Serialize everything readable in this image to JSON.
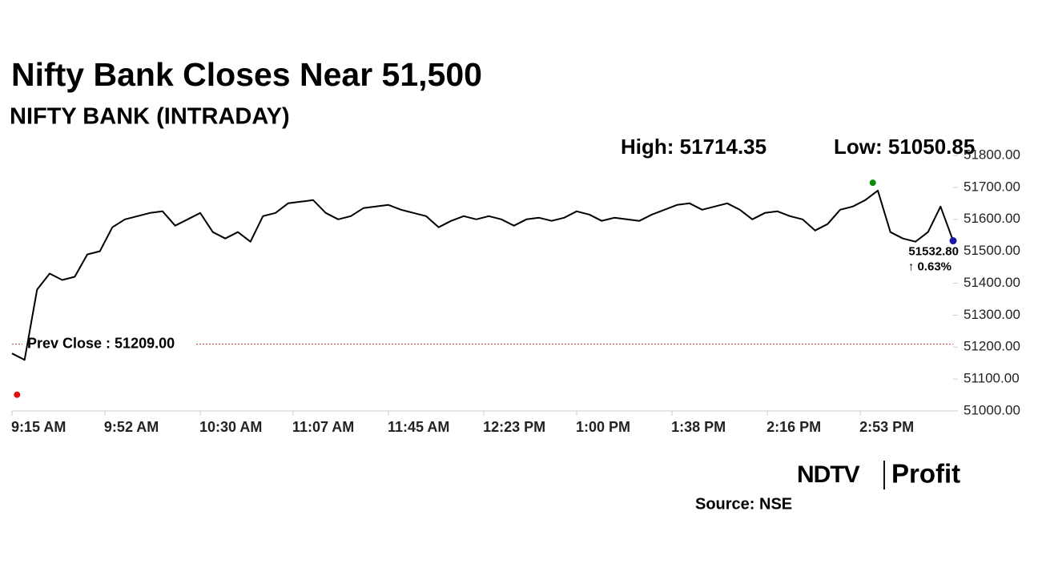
{
  "chart_data": {
    "type": "line",
    "title": "Nifty Bank Closes Near 51,500",
    "subtitle": "NIFTY BANK (INTRADAY)",
    "high": {
      "value": 51714.35,
      "label": "High: 51714.35",
      "x": "2:58 PM",
      "color": "#0a8a0a"
    },
    "low": {
      "value": 51050.85,
      "label": "Low: 51050.85",
      "x": "9:17 AM",
      "color": "#e01010"
    },
    "prev_close": {
      "value": 51209,
      "label": "Prev Close : 51209.00",
      "color": "#c0392b"
    },
    "close": {
      "value": 51532.8,
      "label": "51532.80",
      "color": "#1a1aa8"
    },
    "change": {
      "value": 0.63,
      "label": "↑ 0.63%",
      "color": "#0a8a0a"
    },
    "x": [
      "9:15 AM",
      "9:20 AM",
      "9:25 AM",
      "9:30 AM",
      "9:35 AM",
      "9:40 AM",
      "9:45 AM",
      "9:50 AM",
      "9:55 AM",
      "10:00 AM",
      "10:05 AM",
      "10:10 AM",
      "10:15 AM",
      "10:20 AM",
      "10:25 AM",
      "10:30 AM",
      "10:35 AM",
      "10:40 AM",
      "10:45 AM",
      "10:50 AM",
      "10:55 AM",
      "11:00 AM",
      "11:05 AM",
      "11:10 AM",
      "11:15 AM",
      "11:20 AM",
      "11:25 AM",
      "11:30 AM",
      "11:35 AM",
      "11:40 AM",
      "11:45 AM",
      "11:50 AM",
      "11:55 AM",
      "12:00 PM",
      "12:05 PM",
      "12:10 PM",
      "12:15 PM",
      "12:20 PM",
      "12:25 PM",
      "12:30 PM",
      "12:35 PM",
      "12:40 PM",
      "12:45 PM",
      "12:50 PM",
      "12:55 PM",
      "1:00 PM",
      "1:05 PM",
      "1:10 PM",
      "1:15 PM",
      "1:20 PM",
      "1:25 PM",
      "1:30 PM",
      "1:35 PM",
      "1:40 PM",
      "1:45 PM",
      "1:50 PM",
      "1:55 PM",
      "2:00 PM",
      "2:05 PM",
      "2:10 PM",
      "2:15 PM",
      "2:20 PM",
      "2:25 PM",
      "2:30 PM",
      "2:35 PM",
      "2:40 PM",
      "2:45 PM",
      "2:50 PM",
      "2:55 PM",
      "3:00 PM",
      "3:05 PM",
      "3:10 PM",
      "3:15 PM",
      "3:20 PM",
      "3:25 PM",
      "3:30 PM"
    ],
    "series": [
      {
        "name": "NIFTY BANK",
        "color": "#000000",
        "values": [
          51180,
          51160,
          51380,
          51430,
          51410,
          51420,
          51490,
          51500,
          51575,
          51600,
          51610,
          51620,
          51625,
          51580,
          51600,
          51620,
          51560,
          51540,
          51560,
          51530,
          51610,
          51620,
          51650,
          51655,
          51660,
          51620,
          51600,
          51610,
          51635,
          51640,
          51645,
          51630,
          51620,
          51610,
          51575,
          51595,
          51610,
          51600,
          51610,
          51600,
          51580,
          51600,
          51605,
          51595,
          51605,
          51625,
          51615,
          51595,
          51605,
          51600,
          51595,
          51615,
          51630,
          51645,
          51650,
          51630,
          51640,
          51650,
          51630,
          51600,
          51620,
          51625,
          51610,
          51600,
          51565,
          51585,
          51630,
          51640,
          51660,
          51690,
          51560,
          51540,
          51530,
          51560,
          51640,
          51532.8
        ]
      }
    ],
    "xlim": [
      "9:15 AM",
      "3:30 PM"
    ],
    "xticks": [
      "9:15 AM",
      "9:52 AM",
      "10:30 AM",
      "11:07 AM",
      "11:45 AM",
      "12:23 PM",
      "1:00 PM",
      "1:38 PM",
      "2:16 PM",
      "2:53 PM"
    ],
    "ylim": [
      51000,
      51800
    ],
    "yticks": [
      {
        "value": 51000,
        "label": "51000.00"
      },
      {
        "value": 51100,
        "label": "51100.00"
      },
      {
        "value": 51200,
        "label": "51200.00"
      },
      {
        "value": 51300,
        "label": "51300.00"
      },
      {
        "value": 51400,
        "label": "51400.00"
      },
      {
        "value": 51500,
        "label": "51500.00"
      },
      {
        "value": 51600,
        "label": "51600.00"
      },
      {
        "value": 51700,
        "label": "51700.00"
      },
      {
        "value": 51800,
        "label": "51800.00"
      }
    ],
    "source": "Source: NSE",
    "logo_left": "NDTV",
    "logo_right": "Profit"
  }
}
